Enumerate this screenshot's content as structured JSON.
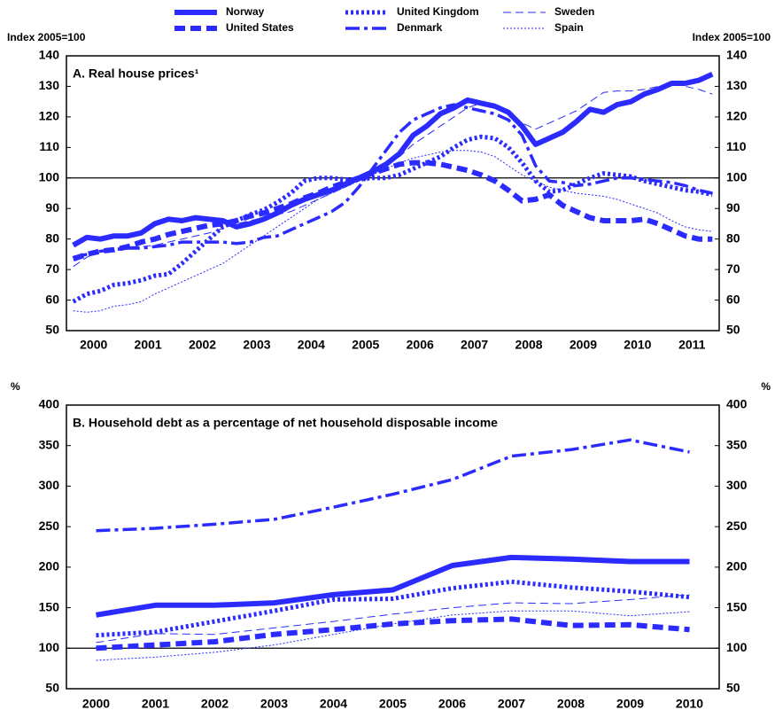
{
  "legend": {
    "names_from": "chart_data.0.series"
  },
  "chart_data": [
    {
      "type": "line",
      "title": "A. Real house prices¹",
      "ylabel": "Index 2005=100",
      "x": [
        2000.125,
        2000.375,
        2000.625,
        2000.875,
        2001.125,
        2001.375,
        2001.625,
        2001.875,
        2002.125,
        2002.375,
        2002.625,
        2002.875,
        2003.125,
        2003.375,
        2003.625,
        2003.875,
        2004.125,
        2004.375,
        2004.625,
        2004.875,
        2005.125,
        2005.375,
        2005.625,
        2005.875,
        2006.125,
        2006.375,
        2006.625,
        2006.875,
        2007.125,
        2007.375,
        2007.625,
        2007.875,
        2008.125,
        2008.375,
        2008.625,
        2008.875,
        2009.125,
        2009.375,
        2009.625,
        2009.875,
        2010.125,
        2010.375,
        2010.625,
        2010.875,
        2011.125,
        2011.375,
        2011.625,
        2011.875
      ],
      "xlim": [
        2000,
        2012
      ],
      "xticks": [
        {
          "value": 2000.5,
          "label": "2000"
        },
        {
          "value": 2001.5,
          "label": "2001"
        },
        {
          "value": 2002.5,
          "label": "2002"
        },
        {
          "value": 2003.5,
          "label": "2003"
        },
        {
          "value": 2004.5,
          "label": "2004"
        },
        {
          "value": 2005.5,
          "label": "2005"
        },
        {
          "value": 2006.5,
          "label": "2006"
        },
        {
          "value": 2007.5,
          "label": "2007"
        },
        {
          "value": 2008.5,
          "label": "2008"
        },
        {
          "value": 2009.5,
          "label": "2009"
        },
        {
          "value": 2010.5,
          "label": "2010"
        },
        {
          "value": 2011.5,
          "label": "2011"
        }
      ],
      "ylim": [
        50,
        140
      ],
      "yticks": [
        50,
        60,
        70,
        80,
        90,
        100,
        110,
        120,
        130,
        140
      ],
      "hline": 100,
      "series": [
        {
          "name": "Norway",
          "color": "#2b2bff",
          "style": "solid",
          "values": [
            78,
            80.5,
            80,
            81,
            81,
            82,
            85,
            86.5,
            86,
            87,
            86.5,
            86,
            84,
            85,
            86.5,
            88.5,
            91,
            93,
            94.5,
            96,
            98,
            100,
            102,
            104.5,
            108,
            114,
            117,
            121,
            123,
            125.5,
            124.5,
            123.5,
            121.5,
            117,
            111,
            113,
            115,
            118.5,
            122.5,
            121.5,
            124,
            125,
            127.5,
            129,
            131,
            131,
            132,
            134
          ]
        },
        {
          "name": "United States",
          "color": "#2b2bff",
          "style": "dashed",
          "values": [
            73.5,
            75,
            76,
            76.5,
            77.5,
            79,
            80,
            81.5,
            82.5,
            83.5,
            84.5,
            85,
            86,
            87.5,
            88.5,
            90,
            91.5,
            93.5,
            95,
            97,
            98.5,
            100,
            101.5,
            103,
            104.5,
            105,
            105,
            104.5,
            103.5,
            102.5,
            101,
            99,
            96,
            92.5,
            93,
            94.5,
            91,
            89,
            87,
            86,
            86,
            86,
            86.5,
            85,
            83,
            81,
            80,
            80
          ]
        },
        {
          "name": "United Kingdom",
          "color": "#2b2bff",
          "style": "dotted",
          "values": [
            59.5,
            62,
            63,
            65,
            65.5,
            66.5,
            68,
            68.5,
            72,
            76,
            80,
            84,
            86,
            88,
            89.5,
            92,
            95,
            99,
            100,
            100,
            99.5,
            99.5,
            100,
            100,
            101,
            103,
            105,
            107,
            110,
            112.5,
            113.5,
            113,
            110,
            105,
            99,
            95.5,
            96,
            98,
            100,
            101.5,
            101,
            100.5,
            99,
            98,
            97,
            96,
            95.5,
            94.5
          ]
        },
        {
          "name": "Denmark",
          "color": "#2b2bff",
          "style": "dashdot",
          "values": [
            74,
            75,
            76,
            76.5,
            77,
            77,
            77.5,
            78,
            79,
            79,
            79,
            79,
            78.5,
            79,
            80.5,
            81,
            83,
            85,
            87,
            89,
            92,
            97,
            103,
            109,
            115,
            119,
            121,
            123,
            124,
            123,
            122,
            121,
            119,
            114,
            104,
            99,
            98.5,
            97.5,
            98,
            99,
            100,
            100,
            99.5,
            99,
            98.5,
            97.5,
            96,
            95
          ]
        },
        {
          "name": "Sweden",
          "color": "#2b2bff",
          "style": "thindash",
          "values": [
            71,
            74,
            76,
            77,
            77.5,
            77.5,
            78,
            79,
            80,
            81,
            82,
            83.5,
            85,
            86,
            87,
            88,
            89,
            91,
            93,
            95,
            97,
            99,
            101,
            104,
            107,
            111,
            114,
            117,
            120,
            123,
            124.5,
            124,
            122,
            118,
            116,
            118,
            120,
            122,
            125,
            128,
            128.5,
            128.5,
            129,
            130,
            131,
            130,
            129,
            127.5
          ]
        },
        {
          "name": "Spain",
          "color": "#2b2bff",
          "style": "thindot",
          "values": [
            56.5,
            56,
            56.5,
            58,
            58.5,
            59.5,
            62,
            64,
            66,
            68,
            70,
            72,
            75,
            78,
            81,
            84,
            87,
            90,
            93,
            95,
            97,
            99,
            101,
            103,
            105,
            106.5,
            107.5,
            108.5,
            109,
            109,
            108.5,
            107,
            104,
            101,
            99,
            97,
            96,
            95,
            94.5,
            94,
            93,
            91.5,
            90,
            88.5,
            86,
            84,
            83,
            82.5
          ]
        }
      ]
    },
    {
      "type": "line",
      "title": "B. Household debt as a percentage of net household disposable income",
      "ylabel": "%",
      "categories": [
        "2000",
        "2001",
        "2002",
        "2003",
        "2004",
        "2005",
        "2006",
        "2007",
        "2008",
        "2009",
        "2010"
      ],
      "ylim": [
        50,
        400
      ],
      "yticks": [
        50,
        100,
        150,
        200,
        250,
        300,
        350,
        400
      ],
      "hline": 100,
      "series": [
        {
          "name": "Norway",
          "color": "#2b2bff",
          "style": "solid",
          "values": [
            141,
            153,
            153,
            156,
            166,
            172,
            202,
            212,
            210,
            207,
            207
          ]
        },
        {
          "name": "United States",
          "color": "#2b2bff",
          "style": "dashed",
          "values": [
            100,
            104,
            108,
            117,
            123,
            130,
            134,
            136,
            128,
            129,
            123
          ]
        },
        {
          "name": "United Kingdom",
          "color": "#2b2bff",
          "style": "dotted",
          "values": [
            116,
            120,
            133,
            146,
            160,
            161,
            174,
            182,
            175,
            170,
            163
          ]
        },
        {
          "name": "Denmark",
          "color": "#2b2bff",
          "style": "dashdot",
          "values": [
            245,
            248,
            253,
            259,
            274,
            290,
            308,
            337,
            345,
            357,
            342
          ]
        },
        {
          "name": "Sweden",
          "color": "#2b2bff",
          "style": "thindash",
          "values": [
            107,
            118,
            117,
            125,
            133,
            142,
            150,
            156,
            155,
            160,
            166
          ]
        },
        {
          "name": "Spain",
          "color": "#2b2bff",
          "style": "thindot",
          "values": [
            85,
            89,
            95,
            104,
            117,
            130,
            141,
            146,
            146,
            140,
            145
          ]
        }
      ]
    }
  ]
}
